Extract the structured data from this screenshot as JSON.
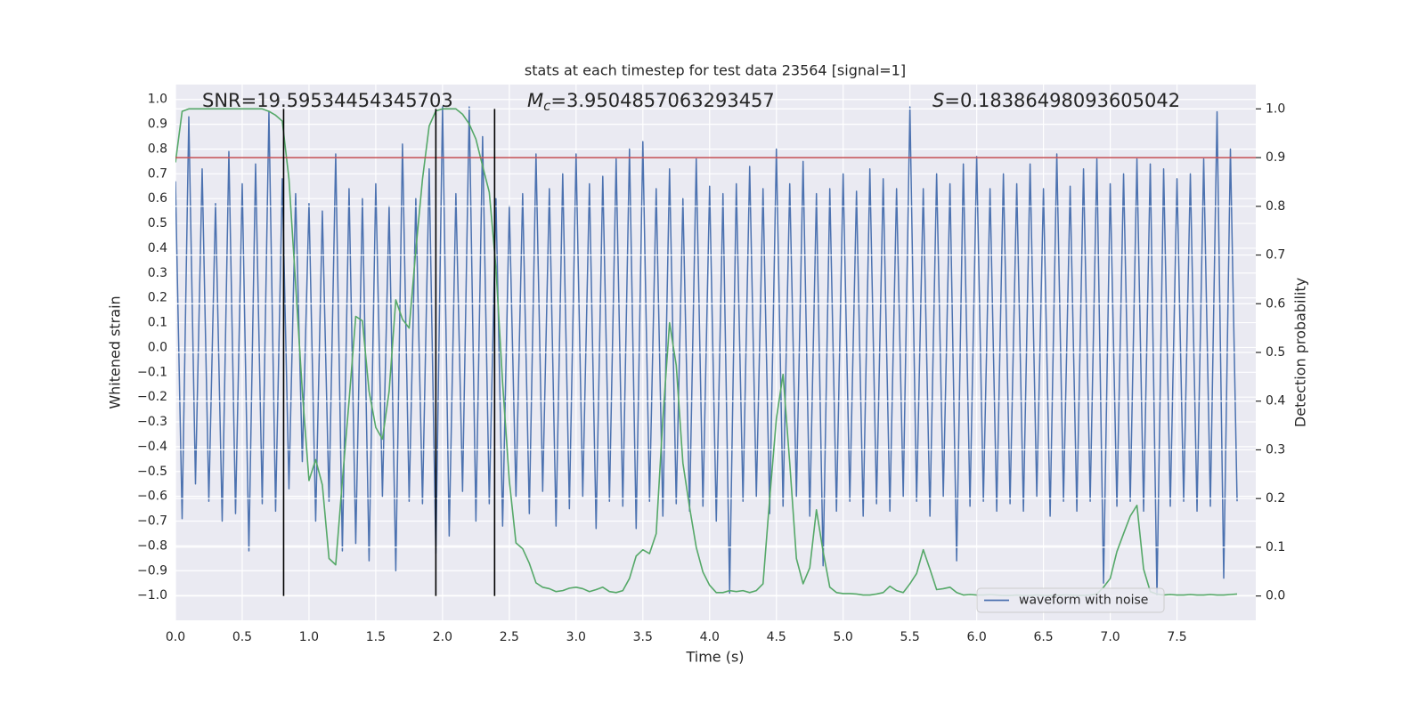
{
  "chart_data": {
    "type": "line",
    "title": "stats at each timestep for test data 23564 [signal=1]",
    "x_label": "Time (s)",
    "y_label": "Whitened strain",
    "y2_label": "Detection probability",
    "annotations": [
      {
        "text": "SNR=19.59534454345703"
      },
      {
        "symbol": "M",
        "subscript": "c",
        "text": "=3.9504857063293457"
      },
      {
        "symbol": "S",
        "text": "=0.18386498093605042"
      }
    ],
    "x": [
      0,
      0.05,
      0.1,
      0.15,
      0.2,
      0.25,
      0.3,
      0.35,
      0.4,
      0.45,
      0.5,
      0.55,
      0.6,
      0.65,
      0.7,
      0.75,
      0.8,
      0.85,
      0.9,
      0.95,
      1,
      1.05,
      1.1,
      1.15,
      1.2,
      1.25,
      1.3,
      1.35,
      1.4,
      1.45,
      1.5,
      1.55,
      1.6,
      1.65,
      1.7,
      1.75,
      1.8,
      1.85,
      1.9,
      1.95,
      2,
      2.05,
      2.1,
      2.15,
      2.2,
      2.25,
      2.3,
      2.35,
      2.4,
      2.45,
      2.5,
      2.55,
      2.6,
      2.65,
      2.7,
      2.75,
      2.8,
      2.85,
      2.9,
      2.95,
      3,
      3.05,
      3.1,
      3.15,
      3.2,
      3.25,
      3.3,
      3.35,
      3.4,
      3.45,
      3.5,
      3.55,
      3.6,
      3.65,
      3.7,
      3.75,
      3.8,
      3.85,
      3.9,
      3.95,
      4,
      4.05,
      4.1,
      4.15,
      4.2,
      4.25,
      4.3,
      4.35,
      4.4,
      4.45,
      4.5,
      4.55,
      4.6,
      4.65,
      4.7,
      4.75,
      4.8,
      4.85,
      4.9,
      4.95,
      5,
      5.05,
      5.1,
      5.15,
      5.2,
      5.25,
      5.3,
      5.35,
      5.4,
      5.45,
      5.5,
      5.55,
      5.6,
      5.65,
      5.7,
      5.75,
      5.8,
      5.85,
      5.9,
      5.95,
      6,
      6.05,
      6.1,
      6.15,
      6.2,
      6.25,
      6.3,
      6.35,
      6.4,
      6.45,
      6.5,
      6.55,
      6.6,
      6.65,
      6.7,
      6.75,
      6.8,
      6.85,
      6.9,
      6.95,
      7,
      7.05,
      7.1,
      7.15,
      7.2,
      7.25,
      7.3,
      7.35,
      7.4,
      7.45,
      7.5,
      7.55,
      7.6,
      7.65,
      7.7,
      7.75,
      7.8,
      7.85,
      7.9,
      7.95
    ],
    "series": [
      {
        "name": "waveform with noise",
        "color": "#4c72b0",
        "axis": "y",
        "values": [
          0.67,
          -0.69,
          0.93,
          -0.55,
          0.72,
          -0.62,
          0.58,
          -0.7,
          0.79,
          -0.67,
          0.66,
          -0.82,
          0.74,
          -0.63,
          0.95,
          -0.66,
          0.68,
          -0.57,
          0.62,
          -0.46,
          0.58,
          -0.7,
          0.55,
          -0.62,
          0.78,
          -0.82,
          0.64,
          -0.79,
          0.6,
          -0.86,
          0.66,
          -0.6,
          0.57,
          -0.9,
          0.82,
          -0.62,
          0.6,
          -0.63,
          0.72,
          -0.83,
          0.97,
          -0.76,
          0.62,
          -0.58,
          0.97,
          -0.7,
          0.85,
          -0.63,
          0.6,
          -0.72,
          0.57,
          -0.6,
          0.62,
          -0.67,
          0.78,
          -0.58,
          0.64,
          -0.72,
          0.7,
          -0.65,
          0.78,
          -0.6,
          0.66,
          -0.73,
          0.69,
          -0.62,
          0.76,
          -0.64,
          0.8,
          -0.73,
          0.83,
          -0.62,
          0.64,
          -0.68,
          0.72,
          -0.63,
          0.6,
          -0.66,
          0.76,
          -0.64,
          0.65,
          -0.7,
          0.62,
          -0.99,
          0.66,
          -0.62,
          0.73,
          -0.6,
          0.64,
          -0.67,
          0.8,
          -0.64,
          0.66,
          -0.6,
          0.75,
          -0.68,
          0.62,
          -0.88,
          0.64,
          -0.66,
          0.7,
          -0.62,
          0.63,
          -0.68,
          0.72,
          -0.63,
          0.68,
          -0.66,
          0.64,
          -0.6,
          0.97,
          -0.62,
          0.64,
          -0.68,
          0.7,
          -0.6,
          0.66,
          -0.86,
          0.74,
          -0.64,
          0.77,
          -0.62,
          0.64,
          -0.66,
          0.7,
          -0.63,
          0.66,
          -0.66,
          0.74,
          -0.6,
          0.64,
          -0.68,
          0.78,
          -0.62,
          0.65,
          -0.66,
          0.72,
          -0.62,
          0.76,
          -0.95,
          0.66,
          -0.64,
          0.7,
          -0.62,
          0.76,
          -0.66,
          0.74,
          -1.0,
          0.72,
          -0.64,
          0.68,
          -0.62,
          0.7,
          -0.66,
          0.76,
          -0.64,
          0.95,
          -0.93,
          0.8,
          -0.62
        ]
      },
      {
        "color": "#55a868",
        "axis": "y2",
        "values": [
          0.89,
          0.995,
          1.0,
          1.0,
          1.0,
          1.0,
          1.0,
          1.0,
          1.0,
          1.0,
          1.0,
          1.0,
          1.0,
          1.0,
          0.995,
          0.987,
          0.975,
          0.856,
          0.64,
          0.42,
          0.237,
          0.28,
          0.228,
          0.077,
          0.064,
          0.237,
          0.4,
          0.574,
          0.565,
          0.42,
          0.346,
          0.322,
          0.42,
          0.608,
          0.568,
          0.55,
          0.71,
          0.856,
          0.965,
          0.996,
          1.0,
          1.0,
          1.0,
          0.989,
          0.969,
          0.938,
          0.883,
          0.829,
          0.674,
          0.437,
          0.237,
          0.109,
          0.097,
          0.067,
          0.027,
          0.018,
          0.015,
          0.009,
          0.011,
          0.016,
          0.018,
          0.015,
          0.009,
          0.013,
          0.018,
          0.009,
          0.007,
          0.011,
          0.036,
          0.082,
          0.095,
          0.087,
          0.128,
          0.364,
          0.561,
          0.474,
          0.273,
          0.182,
          0.1,
          0.049,
          0.022,
          0.007,
          0.007,
          0.011,
          0.009,
          0.011,
          0.007,
          0.011,
          0.025,
          0.2,
          0.364,
          0.455,
          0.273,
          0.077,
          0.025,
          0.058,
          0.177,
          0.091,
          0.018,
          0.007,
          0.005,
          0.005,
          0.004,
          0.002,
          0.002,
          0.004,
          0.007,
          0.02,
          0.011,
          0.007,
          0.025,
          0.046,
          0.095,
          0.055,
          0.013,
          0.015,
          0.018,
          0.007,
          0.002,
          0.003,
          0.002,
          0.002,
          0.003,
          0.002,
          0.001,
          0.001,
          0.002,
          0.001,
          0.001,
          0.002,
          0.001,
          0.001,
          0.001,
          0.002,
          0.002,
          0.001,
          0.001,
          0.002,
          0.004,
          0.018,
          0.036,
          0.091,
          0.128,
          0.164,
          0.186,
          0.055,
          0.009,
          0.004,
          0.002,
          0.003,
          0.002,
          0.002,
          0.003,
          0.002,
          0.002,
          0.003,
          0.002,
          0.002,
          0.003,
          0.004
        ]
      }
    ],
    "threshold": {
      "value": 0.9,
      "axis": "y2",
      "color": "#c44e52"
    },
    "vlines": {
      "x": [
        0.81,
        1.95,
        2.39
      ],
      "color": "#000000"
    },
    "xlim": [
      0,
      8.09
    ],
    "ylim": [
      -1.1,
      1.06
    ],
    "y2lim": [
      -0.05,
      1.05
    ],
    "xticks": [
      {
        "value": 0,
        "label": "0.0"
      },
      0.5,
      {
        "value": 1,
        "label": "1.0"
      },
      1.5,
      {
        "value": 2,
        "label": "2.0"
      },
      2.5,
      {
        "value": 3,
        "label": "3.0"
      },
      3.5,
      {
        "value": 4,
        "label": "4.0"
      },
      4.5,
      {
        "value": 5,
        "label": "5.0"
      },
      5.5,
      {
        "value": 6,
        "label": "6.0"
      },
      6.5,
      {
        "value": 7,
        "label": "7.0"
      },
      7.5
    ],
    "yticks": [
      {
        "value": -1,
        "label": "−1.0"
      },
      {
        "value": -0.9,
        "label": "−0.9"
      },
      {
        "value": -0.8,
        "label": "−0.8"
      },
      {
        "value": -0.7,
        "label": "−0.7"
      },
      {
        "value": -0.6,
        "label": "−0.6"
      },
      {
        "value": -0.5,
        "label": "−0.5"
      },
      {
        "value": -0.4,
        "label": "−0.4"
      },
      {
        "value": -0.3,
        "label": "−0.3"
      },
      {
        "value": -0.2,
        "label": "−0.2"
      },
      {
        "value": -0.1,
        "label": "−0.1"
      },
      {
        "value": 0,
        "label": "0.0"
      },
      0.1,
      0.2,
      0.3,
      0.4,
      0.5,
      0.6,
      0.7,
      0.8,
      0.9,
      {
        "value": 1,
        "label": "1.0"
      }
    ],
    "y2ticks": [
      {
        "value": 0,
        "label": "0.0"
      },
      0.1,
      0.2,
      0.3,
      0.4,
      0.5,
      0.6,
      0.7,
      0.8,
      0.9,
      {
        "value": 1,
        "label": "1.0"
      }
    ],
    "grid": true,
    "legend": "lower right"
  }
}
